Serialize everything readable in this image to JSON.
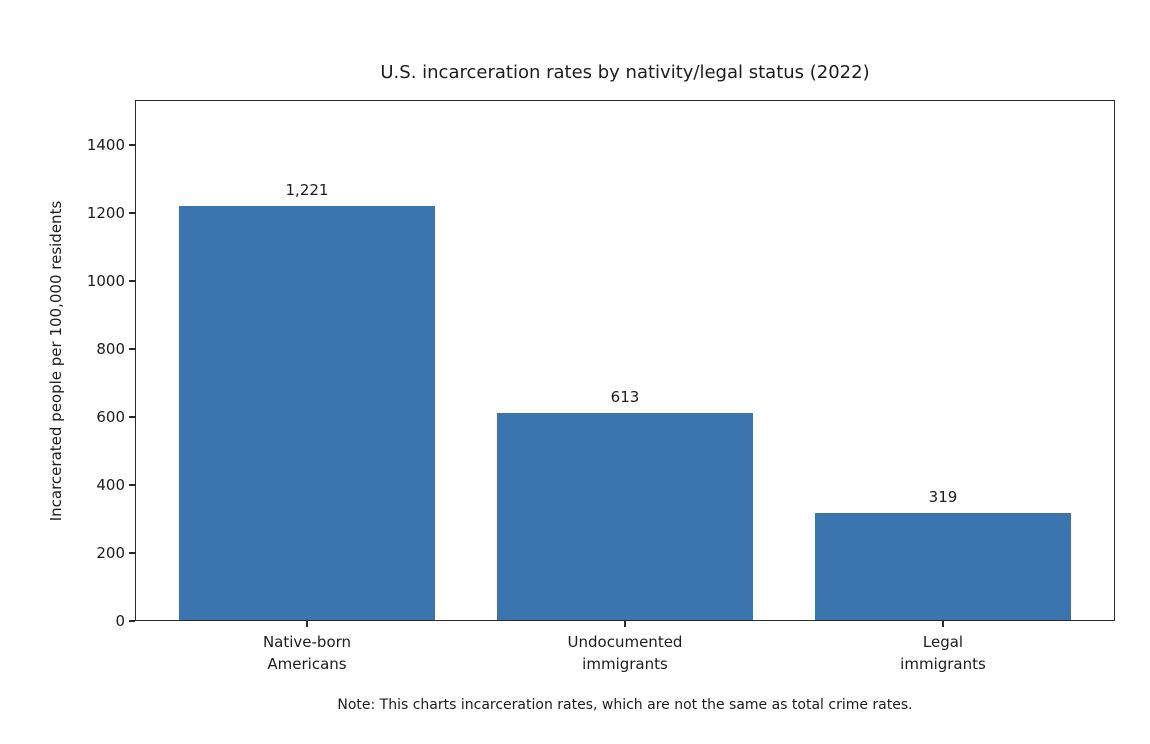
{
  "chart_data": {
    "type": "bar",
    "title": "U.S. incarceration rates by nativity/legal status (2022)",
    "categories": [
      "Native-born\nAmericans",
      "Undocumented\nimmigrants",
      "Legal\nimmigrants"
    ],
    "values": [
      1221,
      613,
      319
    ],
    "value_labels": [
      "1,221",
      "613",
      "319"
    ],
    "xlabel": "",
    "ylabel": "Incarcerated people per 100,000 residents",
    "yticks": [
      0,
      200,
      400,
      600,
      800,
      1000,
      1200,
      1400
    ],
    "ylim": [
      0,
      1532
    ],
    "grid": false,
    "legend": "none",
    "colors": {
      "bar": "#3b75af",
      "text": "#1c1c1c",
      "spine": "#2b2b2b",
      "background": "#ffffff"
    },
    "note": "Note: This charts incarceration rates, which are not the same as total crime rates."
  }
}
